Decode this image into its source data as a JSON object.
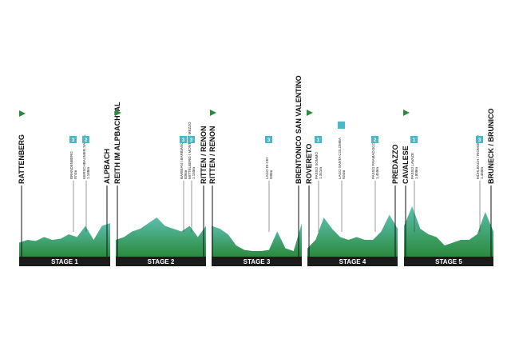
{
  "stages": [
    {
      "label": "STAGE 1",
      "towns": [
        "RATTENBERG",
        "ALPBACH"
      ],
      "climbs": [
        {
          "name": "BRANDENBERG",
          "alt": "974m",
          "cat": "3"
        },
        {
          "name": "KERSCHBAUMER SATTEL",
          "alt": "1.188m",
          "cat": "2"
        }
      ]
    },
    {
      "label": "STAGE 2",
      "towns": [
        "REITH IM ALPBACHTAL",
        "RITTEN / RENON"
      ],
      "climbs": [
        {
          "name": "BARBIAN / BARBIANO",
          "alt": "836m",
          "cat": "3"
        },
        {
          "name": "MITTELBERG / MONTE DI MEZZO",
          "alt": "1.150m",
          "cat": "3"
        }
      ]
    },
    {
      "label": "STAGE 3",
      "towns": [
        "RITTEN / RENON",
        "BRENTONICO SAN VALENTINO"
      ],
      "climbs": [
        {
          "name": "LAGO DI CEI",
          "alt": "938m",
          "cat": "3"
        }
      ]
    },
    {
      "label": "STAGE 4",
      "towns": [
        "ROVERETO",
        "PREDAZZO"
      ],
      "climbs": [
        {
          "name": "PASSO SOMMO",
          "alt": "1.341m",
          "cat": "1"
        },
        {
          "name": "LAGO SANTA COLOMBA",
          "alt": "924m"
        },
        {
          "name": "PASSO PRAMADOCCIO",
          "alt": "1.459m",
          "cat": "2"
        }
      ]
    },
    {
      "label": "STAGE 5",
      "towns": [
        "CAVALESE",
        "BRUNECK / BRUNICO"
      ],
      "climbs": [
        {
          "name": "PASSO LAVAZE",
          "alt": "1.808m",
          "cat": "1"
        },
        {
          "name": "MÜHLBACH / RIOMOLINO",
          "alt": "1.450m",
          "cat": "3"
        }
      ]
    }
  ]
}
